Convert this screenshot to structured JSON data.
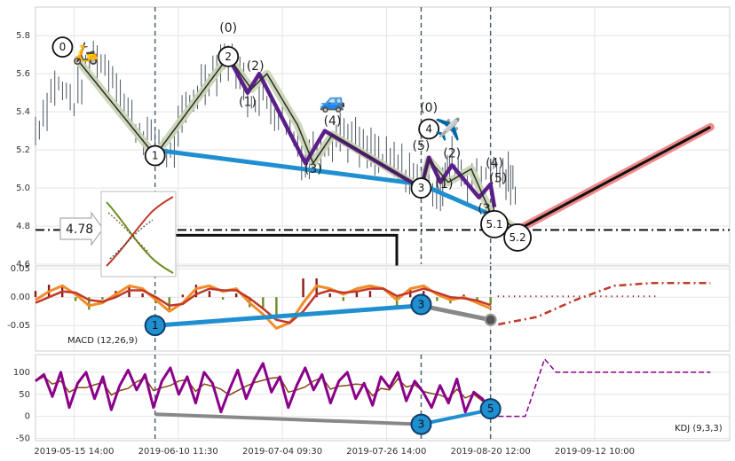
{
  "chart_data": [
    {
      "type": "line",
      "panel": "price",
      "y_ticks": [
        "5.8",
        "5.6",
        "5.4",
        "5.2",
        "5.0",
        "4.8",
        "4.6"
      ],
      "ylim": [
        4.6,
        5.95
      ],
      "price_path": [
        [
          0,
          5.3
        ],
        [
          5,
          5.55
        ],
        [
          10,
          5.45
        ],
        [
          15,
          5.7
        ],
        [
          20,
          5.6
        ],
        [
          25,
          5.35
        ],
        [
          30,
          5.25
        ],
        [
          35,
          5.17
        ],
        [
          40,
          5.45
        ],
        [
          45,
          5.6
        ],
        [
          50,
          5.7
        ],
        [
          55,
          5.5
        ],
        [
          60,
          5.45
        ],
        [
          65,
          5.35
        ],
        [
          70,
          5.15
        ],
        [
          75,
          5.25
        ],
        [
          80,
          5.3
        ],
        [
          85,
          5.2
        ],
        [
          90,
          5.15
        ],
        [
          95,
          5.1
        ],
        [
          100,
          5.05
        ],
        [
          105,
          5.0
        ],
        [
          108,
          5.15
        ],
        [
          112,
          5.05
        ],
        [
          118,
          5.1
        ],
        [
          122,
          5.05
        ],
        [
          125,
          5.0
        ]
      ],
      "wave_main": [
        [
          11,
          5.67
        ],
        [
          31,
          5.17
        ],
        [
          50,
          5.69
        ],
        [
          56,
          5.52
        ],
        [
          60,
          5.6
        ],
        [
          68,
          5.33
        ],
        [
          72,
          5.13
        ],
        [
          77,
          5.28
        ],
        [
          100,
          5.0
        ],
        [
          102,
          5.15
        ],
        [
          107,
          5.03
        ],
        [
          113,
          5.1
        ],
        [
          118,
          4.87
        ],
        [
          120,
          4.85
        ],
        [
          125,
          4.78
        ]
      ],
      "wave_sub": [
        [
          50,
          5.69
        ],
        [
          55,
          5.5
        ],
        [
          58,
          5.6
        ],
        [
          70,
          5.13
        ],
        [
          75,
          5.3
        ],
        [
          100,
          5.0
        ],
        [
          102,
          5.16
        ],
        [
          105,
          5.03
        ],
        [
          108,
          5.12
        ],
        [
          115,
          4.95
        ],
        [
          118,
          5.02
        ],
        [
          119,
          4.9
        ]
      ],
      "blue_line": [
        [
          31,
          5.2
        ],
        [
          100,
          5.02
        ],
        [
          118,
          4.86
        ]
      ],
      "forecast_line": [
        [
          125,
          4.78
        ],
        [
          175,
          5.32
        ]
      ],
      "dashed_level": 4.78,
      "level_label": "4.78",
      "verticals": [
        31,
        100,
        118
      ],
      "wave_labels": [
        {
          "text": "(0)",
          "x": 50,
          "y": 5.82
        },
        {
          "text": "(2)",
          "x": 57,
          "y": 5.62
        },
        {
          "text": "(1)",
          "x": 55,
          "y": 5.43
        },
        {
          "text": "(4)",
          "x": 77,
          "y": 5.33
        },
        {
          "text": "(3)",
          "x": 72,
          "y": 5.08
        },
        {
          "text": "(0)",
          "x": 102,
          "y": 5.4
        },
        {
          "text": "(5)",
          "x": 100,
          "y": 5.2
        },
        {
          "text": "(1)",
          "x": 106,
          "y": 5.0
        },
        {
          "text": "(2)",
          "x": 108,
          "y": 5.16
        },
        {
          "text": "(4)",
          "x": 119,
          "y": 5.11
        },
        {
          "text": "(5)",
          "x": 120,
          "y": 5.03
        },
        {
          "text": "(3)",
          "x": 117,
          "y": 4.87
        }
      ],
      "circle_labels": [
        {
          "text": "0",
          "x": 7,
          "y": 5.74
        },
        {
          "text": "1",
          "x": 31,
          "y": 5.17
        },
        {
          "text": "2",
          "x": 50,
          "y": 5.69
        },
        {
          "text": "3",
          "x": 100,
          "y": 5.0
        },
        {
          "text": "4",
          "x": 102,
          "y": 5.31
        },
        {
          "text": "5.1",
          "x": 119,
          "y": 4.81
        },
        {
          "text": "5.2",
          "x": 125,
          "y": 4.74
        }
      ],
      "icons": [
        {
          "name": "scooter-icon",
          "glyph": "🛵",
          "x": 13,
          "y": 5.67
        },
        {
          "name": "car-icon",
          "glyph": "🚙",
          "x": 77,
          "y": 5.42
        },
        {
          "name": "airplane-icon",
          "glyph": "✈️",
          "x": 107,
          "y": 5.27
        }
      ]
    },
    {
      "type": "line",
      "panel": "macd",
      "label": "MACD (12,26,9)",
      "y_ticks": [
        "0.05",
        "0.00",
        "-0.05"
      ],
      "ylim": [
        -0.095,
        0.055
      ],
      "dif": [
        -0.005,
        0.01,
        0.02,
        0.005,
        -0.015,
        -0.01,
        0.005,
        0.02,
        0.015,
        -0.005,
        -0.025,
        -0.01,
        0.015,
        0.02,
        0.01,
        0.015,
        -0.01,
        -0.03,
        -0.055,
        -0.045,
        -0.01,
        0.02,
        0.015,
        0.005,
        0.015,
        0.02,
        0.015,
        -0.005,
        0.015,
        0.02,
        0.005,
        -0.005,
        0.0,
        -0.01,
        -0.02
      ],
      "dea": [
        -0.01,
        0.0,
        0.01,
        0.008,
        -0.005,
        -0.008,
        0.0,
        0.012,
        0.012,
        0.0,
        -0.015,
        -0.012,
        0.005,
        0.015,
        0.012,
        0.012,
        -0.002,
        -0.02,
        -0.04,
        -0.045,
        -0.025,
        0.005,
        0.012,
        0.008,
        0.01,
        0.015,
        0.015,
        0.002,
        0.008,
        0.015,
        0.008,
        0.0,
        -0.002,
        -0.006,
        -0.014
      ],
      "forecast": [
        [
          120,
          -0.048
        ],
        [
          130,
          -0.035
        ],
        [
          140,
          -0.005
        ],
        [
          150,
          0.02
        ],
        [
          160,
          0.025
        ],
        [
          175,
          0.025
        ]
      ],
      "gray_line": [
        [
          100,
          -0.015
        ],
        [
          118,
          -0.04
        ]
      ],
      "blue_line": [
        [
          31,
          -0.05
        ],
        [
          100,
          -0.015
        ]
      ],
      "circle_labels": [
        {
          "text": "1",
          "x": 31,
          "y": -0.05
        },
        {
          "text": "3",
          "x": 100,
          "y": -0.013
        }
      ]
    },
    {
      "type": "line",
      "panel": "kdj",
      "label": "KDJ (9,3,3)",
      "y_ticks": [
        "100",
        "50",
        "0",
        "-50"
      ],
      "ylim": [
        -55,
        140
      ],
      "j_values": [
        80,
        95,
        45,
        100,
        20,
        75,
        100,
        40,
        90,
        15,
        70,
        105,
        60,
        95,
        20,
        80,
        110,
        50,
        90,
        30,
        100,
        75,
        10,
        60,
        105,
        40,
        85,
        120,
        55,
        90,
        20,
        70,
        110,
        60,
        95,
        30,
        80,
        100,
        40,
        75,
        25,
        90,
        65,
        100,
        35,
        80,
        55,
        20,
        70,
        30,
        85,
        10,
        55,
        40,
        15
      ],
      "forecast": [
        [
          120,
          0
        ],
        [
          127,
          0
        ],
        [
          132,
          130
        ],
        [
          135,
          100
        ],
        [
          175,
          100
        ]
      ],
      "gray_line": [
        [
          31,
          5
        ],
        [
          100,
          -18
        ]
      ],
      "blue_line": [
        [
          100,
          -18
        ],
        [
          118,
          15
        ]
      ],
      "circle_labels": [
        {
          "text": "3",
          "x": 100,
          "y": -18
        },
        {
          "text": "5",
          "x": 118,
          "y": 17
        }
      ]
    }
  ],
  "x_axis": {
    "ticks": [
      "2019-05-15 14:00",
      "2019-06-10 11:30",
      "2019-07-04 09:30",
      "2019-07-26 14:00",
      "2019-08-20 12:00",
      "2019-09-12 10:00"
    ],
    "tick_positions": [
      10,
      37,
      64,
      91,
      118,
      145
    ]
  },
  "colors": {
    "price": "#4a5560",
    "wave_main": "#5b1f8a",
    "wave_glow": "#c9d4b3",
    "blue": "#1f8fd0",
    "forecast": "#111111",
    "forecast_glow": "#f08a8a",
    "dif": "#f28c28",
    "dea": "#c0392b",
    "j_line": "#8b008b",
    "gray": "#888888",
    "hist_pos": "#8b1a1a",
    "hist_neg": "#6b8e23"
  }
}
